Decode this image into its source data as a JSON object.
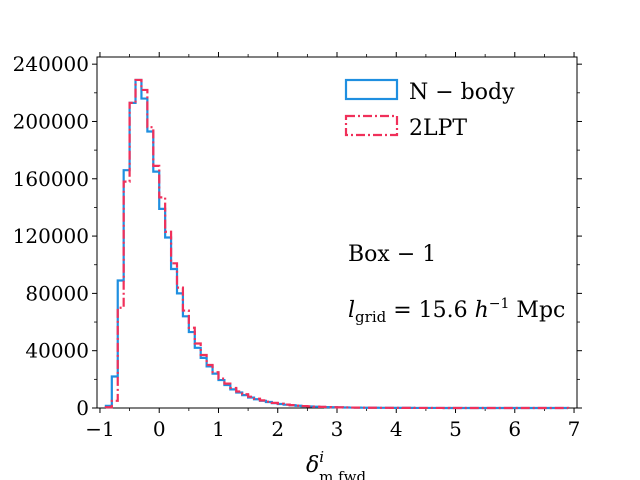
{
  "chart_data": {
    "type": "histogram",
    "xlim": [
      -1.05,
      7.05
    ],
    "ylim": [
      0,
      245000
    ],
    "x_ticks": [
      "−1",
      "0",
      "1",
      "2",
      "3",
      "4",
      "5",
      "6",
      "7"
    ],
    "y_ticks": [
      "0",
      "40000",
      "80000",
      "120000",
      "160000",
      "200000",
      "240000"
    ],
    "x_tick_values": [
      -1,
      0,
      1,
      2,
      3,
      4,
      5,
      6,
      7
    ],
    "y_tick_values": [
      0,
      40000,
      80000,
      120000,
      160000,
      200000,
      240000
    ],
    "bin_start": -0.9,
    "bin_width": 0.1,
    "series": [
      {
        "name": "N − body",
        "color": "#1f8fe0",
        "linestyle": "solid",
        "values": [
          1500,
          22000,
          89000,
          166000,
          213000,
          229000,
          216000,
          193000,
          165000,
          139000,
          119000,
          97000,
          80000,
          64000,
          53000,
          42000,
          35000,
          29000,
          24000,
          19500,
          16000,
          13000,
          10800,
          9000,
          7300,
          6100,
          5000,
          4200,
          3400,
          2800,
          2300,
          1900,
          1550,
          1300,
          1100,
          900,
          750,
          620,
          520,
          440,
          370,
          310,
          260,
          220,
          190,
          160,
          135,
          115,
          100,
          85,
          72,
          62,
          53,
          45,
          38,
          32,
          28,
          24,
          20,
          17,
          15,
          13,
          11,
          9,
          8,
          7,
          6,
          5,
          4,
          3,
          3,
          2,
          2,
          2,
          1,
          1,
          1,
          1
        ]
      },
      {
        "name": "2LPT",
        "color": "#f0305a",
        "linestyle": "dashdot",
        "values": [
          500,
          5000,
          70000,
          158000,
          213000,
          229000,
          222000,
          196000,
          169000,
          147000,
          123000,
          101000,
          84000,
          68000,
          56000,
          45000,
          37000,
          30000,
          25000,
          20500,
          17000,
          14000,
          11500,
          9600,
          7900,
          6500,
          5300,
          4400,
          3600,
          3000,
          2400,
          2000,
          1650,
          1350,
          1150,
          950,
          780,
          650,
          540,
          450,
          380,
          320,
          270,
          230,
          195,
          165,
          140,
          118,
          100,
          86,
          73,
          63,
          54,
          46,
          39,
          33,
          28,
          24,
          20,
          17,
          15,
          13,
          11,
          9,
          8,
          7,
          6,
          5,
          4,
          3,
          3,
          2,
          2,
          2,
          1,
          1,
          1,
          1
        ]
      }
    ],
    "legend_position": "top-right",
    "annotations": [
      "Box − 1",
      "l",
      "grid",
      " = 15.6 ",
      "h",
      "−1",
      " Mpc"
    ],
    "xlabel": [
      "δ",
      "i",
      "m,fwd"
    ]
  }
}
